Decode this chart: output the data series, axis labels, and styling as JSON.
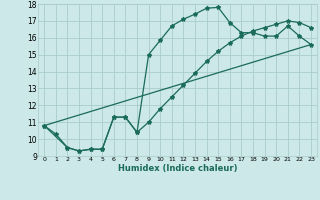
{
  "xlabel": "Humidex (Indice chaleur)",
  "xlim": [
    -0.5,
    23.5
  ],
  "ylim": [
    9,
    18
  ],
  "xticks": [
    0,
    1,
    2,
    3,
    4,
    5,
    6,
    7,
    8,
    9,
    10,
    11,
    12,
    13,
    14,
    15,
    16,
    17,
    18,
    19,
    20,
    21,
    22,
    23
  ],
  "yticks": [
    9,
    10,
    11,
    12,
    13,
    14,
    15,
    16,
    17,
    18
  ],
  "bg_color": "#cce8e8",
  "grid_color": "#aacccc",
  "line_color": "#1a6b5a",
  "line1_x": [
    0,
    1,
    2,
    3,
    4,
    5,
    6,
    7,
    8,
    9,
    10,
    11,
    12,
    13,
    14,
    15,
    16,
    17,
    18,
    19,
    20,
    21,
    22,
    23
  ],
  "line1_y": [
    10.8,
    10.3,
    9.5,
    9.3,
    9.4,
    9.4,
    11.3,
    11.3,
    10.4,
    15.0,
    15.85,
    16.7,
    17.1,
    17.4,
    17.75,
    17.8,
    16.9,
    16.3,
    16.3,
    16.1,
    16.1,
    16.7,
    16.1,
    15.6
  ],
  "line2_x": [
    0,
    2,
    3,
    4,
    5,
    6,
    7,
    8,
    9,
    10,
    11,
    12,
    13,
    14,
    15,
    16,
    17,
    18,
    19,
    20,
    21,
    22,
    23
  ],
  "line2_y": [
    10.8,
    9.5,
    9.3,
    9.4,
    9.4,
    11.3,
    11.3,
    10.4,
    11.0,
    11.8,
    12.5,
    13.2,
    13.9,
    14.6,
    15.2,
    15.7,
    16.1,
    16.4,
    16.6,
    16.8,
    17.0,
    16.9,
    16.6
  ],
  "line3_x": [
    0,
    23
  ],
  "line3_y": [
    10.8,
    15.6
  ]
}
